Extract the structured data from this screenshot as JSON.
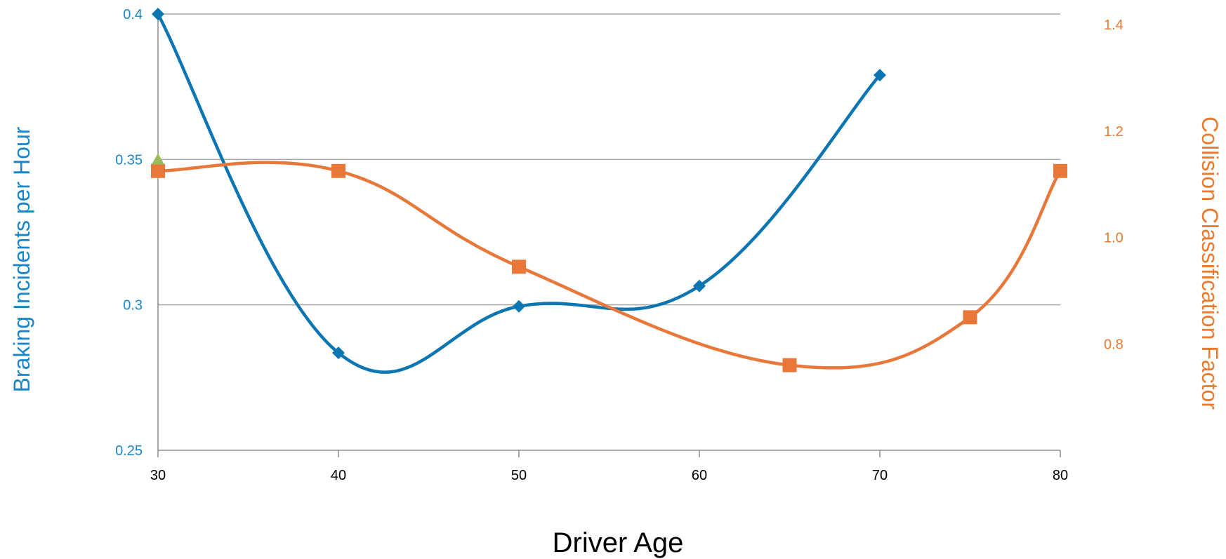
{
  "chart_data": {
    "type": "line",
    "title": "",
    "xlabel": "Driver Age",
    "ylabel_left": "Braking Incidents per Hour",
    "ylabel_right": "Collision Classification Factor",
    "x_ticks": [
      "30",
      "40",
      "50",
      "60",
      "70",
      "80"
    ],
    "y_left_ticks": [
      "0.25",
      "0.3",
      "0.35",
      "0.4"
    ],
    "y_right_ticks": [
      "0.8",
      "1.0",
      "1.2",
      "1.4"
    ],
    "xlim": [
      30,
      80
    ],
    "ylim_left": [
      0.25,
      0.4
    ],
    "ylim_right": [
      0.6,
      1.42
    ],
    "grid": true,
    "legend": "none",
    "colors": {
      "left_axis": "#1a86c8",
      "right_axis": "#e97a2e",
      "series_braking": "#0b76b2",
      "series_collision": "#e8783a",
      "highlight_point": "#9bbb59",
      "grid": "#a6a6a6"
    },
    "series": [
      {
        "axis": "left",
        "marker": "diamond",
        "x": [
          30,
          40,
          50,
          60,
          70
        ],
        "values": [
          0.4,
          0.2835,
          0.2995,
          0.3065,
          0.379
        ]
      },
      {
        "axis": "right",
        "marker": "square",
        "x": [
          30,
          40,
          50,
          65,
          75,
          80
        ],
        "values": [
          1.125,
          1.125,
          0.945,
          0.76,
          0.85,
          1.125
        ]
      },
      {
        "axis": "left",
        "marker": "triangle",
        "x": [
          30
        ],
        "values": [
          0.35
        ]
      }
    ]
  }
}
